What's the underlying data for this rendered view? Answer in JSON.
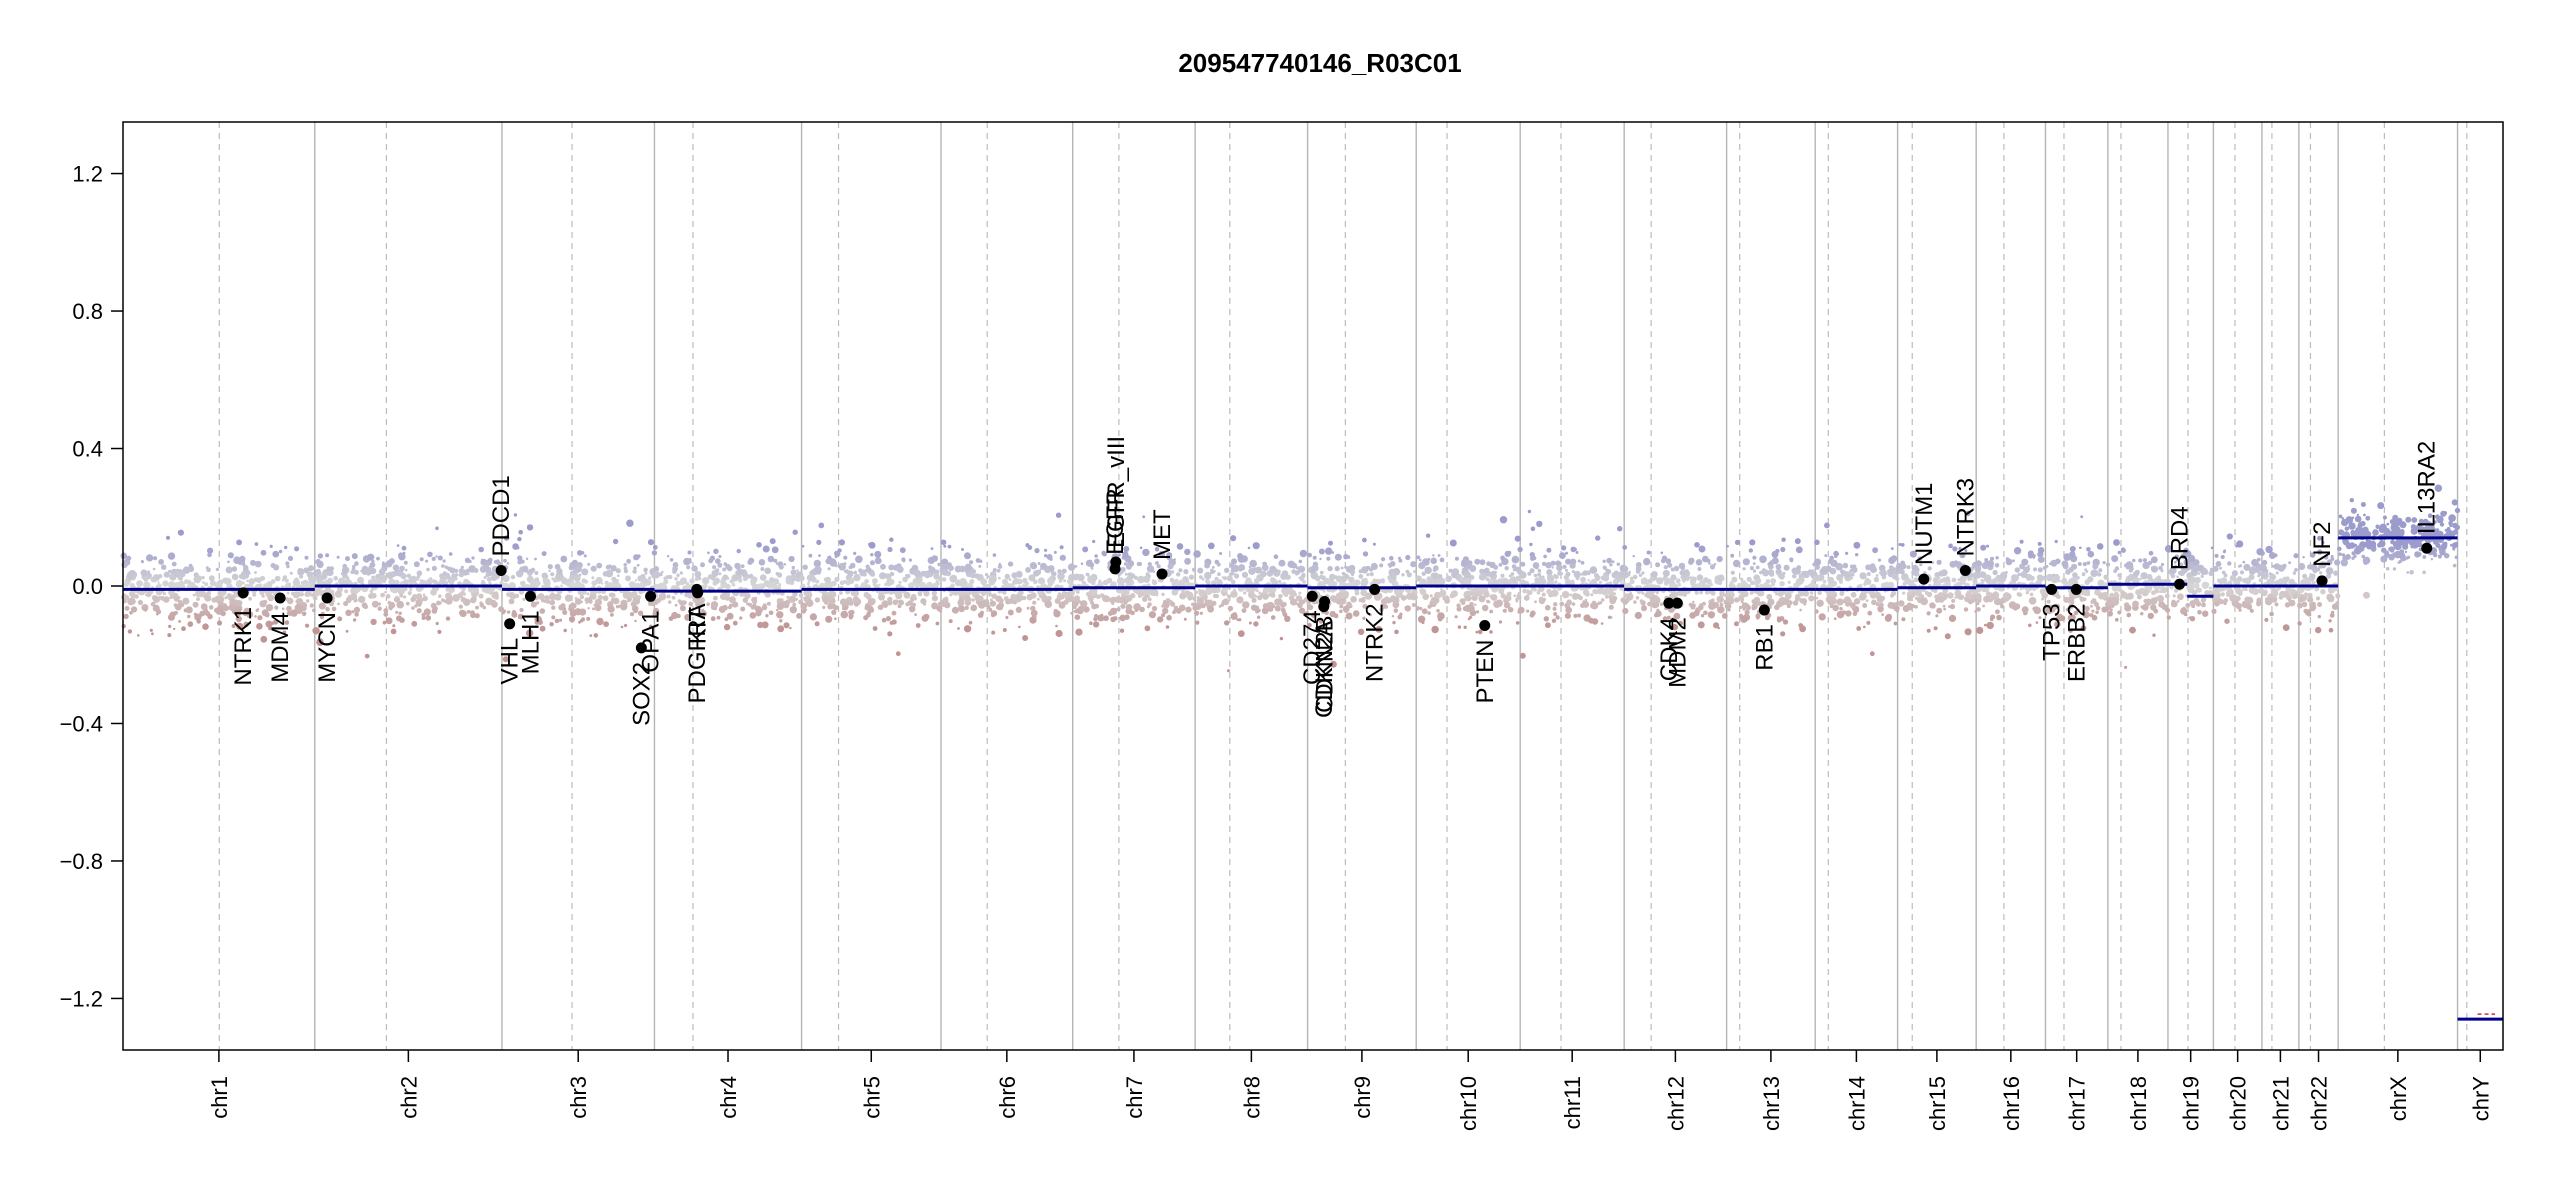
{
  "chart_data": {
    "type": "scatter",
    "title": "209547740146_R03C01",
    "ylim": [
      -1.35,
      1.35
    ],
    "yticks": [
      -1.2,
      -0.8,
      -0.4,
      0.0,
      0.4,
      0.8,
      1.2
    ],
    "ytick_labels": [
      "−1.2",
      "−0.8",
      "−0.4",
      "0.0",
      "0.4",
      "0.8",
      "1.2"
    ],
    "grid": "chromosome separators (solid) and centromeres (dashed)",
    "colors": {
      "gain": "#9b9bcc",
      "loss": "#c09595",
      "segment": "#00008b",
      "genes": "#000000",
      "separator": "#bbbbbb"
    },
    "chromosomes": [
      {
        "name": "chr1",
        "length": 249,
        "centromere": 125
      },
      {
        "name": "chr2",
        "length": 243,
        "centromere": 93
      },
      {
        "name": "chr3",
        "length": 198,
        "centromere": 91
      },
      {
        "name": "chr4",
        "length": 191,
        "centromere": 50
      },
      {
        "name": "chr5",
        "length": 181,
        "centromere": 48
      },
      {
        "name": "chr6",
        "length": 171,
        "centromere": 60
      },
      {
        "name": "chr7",
        "length": 159,
        "centromere": 60
      },
      {
        "name": "chr8",
        "length": 146,
        "centromere": 45
      },
      {
        "name": "chr9",
        "length": 141,
        "centromere": 49
      },
      {
        "name": "chr10",
        "length": 135,
        "centromere": 40
      },
      {
        "name": "chr11",
        "length": 135,
        "centromere": 53
      },
      {
        "name": "chr12",
        "length": 133,
        "centromere": 35
      },
      {
        "name": "chr13",
        "length": 115,
        "centromere": 17
      },
      {
        "name": "chr14",
        "length": 107,
        "centromere": 17
      },
      {
        "name": "chr15",
        "length": 102,
        "centromere": 19
      },
      {
        "name": "chr16",
        "length": 90,
        "centromere": 36
      },
      {
        "name": "chr17",
        "length": 81,
        "centromere": 24
      },
      {
        "name": "chr18",
        "length": 78,
        "centromere": 17
      },
      {
        "name": "chr19",
        "length": 59,
        "centromere": 26
      },
      {
        "name": "chr20",
        "length": 63,
        "centromere": 28
      },
      {
        "name": "chr21",
        "length": 48,
        "centromere": 13
      },
      {
        "name": "chr22",
        "length": 51,
        "centromere": 15
      },
      {
        "name": "chrX",
        "length": 155,
        "centromere": 60
      },
      {
        "name": "chrY",
        "length": 59,
        "centromere": 12
      }
    ],
    "chromosome_levels": [
      {
        "chr": "chr1",
        "value": -0.01,
        "noise": 0.12
      },
      {
        "chr": "chr2",
        "value": 0.0,
        "noise": 0.12
      },
      {
        "chr": "chr3",
        "value": -0.01,
        "noise": 0.12
      },
      {
        "chr": "chr4",
        "value": -0.01,
        "noise": 0.12
      },
      {
        "chr": "chr5",
        "value": -0.01,
        "noise": 0.12
      },
      {
        "chr": "chr6",
        "value": -0.01,
        "noise": 0.12
      },
      {
        "chr": "chr7",
        "value": -0.005,
        "noise": 0.12
      },
      {
        "chr": "chr8",
        "value": -0.005,
        "noise": 0.12
      },
      {
        "chr": "chr9",
        "value": -0.005,
        "noise": 0.12
      },
      {
        "chr": "chr10",
        "value": 0.0,
        "noise": 0.12
      },
      {
        "chr": "chr11",
        "value": 0.0,
        "noise": 0.12
      },
      {
        "chr": "chr12",
        "value": -0.01,
        "noise": 0.12
      },
      {
        "chr": "chr13",
        "value": -0.01,
        "noise": 0.12
      },
      {
        "chr": "chr14",
        "value": -0.01,
        "noise": 0.12
      },
      {
        "chr": "chr15",
        "value": -0.005,
        "noise": 0.12
      },
      {
        "chr": "chr16",
        "value": 0.0,
        "noise": 0.12
      },
      {
        "chr": "chr17",
        "value": -0.005,
        "noise": 0.12
      },
      {
        "chr": "chr18",
        "value": 0.005,
        "noise": 0.12
      },
      {
        "chr": "chr19",
        "value": 0.01,
        "noise": 0.12
      },
      {
        "chr": "chr20",
        "value": 0.0,
        "noise": 0.12
      },
      {
        "chr": "chr21",
        "value": 0.0,
        "noise": 0.12
      },
      {
        "chr": "chr22",
        "value": 0.0,
        "noise": 0.12
      },
      {
        "chr": "chrX",
        "value": 0.14,
        "noise": 0.09
      },
      {
        "chr": "chrY",
        "value": -1.26,
        "noise": 0.0
      }
    ],
    "segments": [
      {
        "chr": "chr1",
        "start": 0,
        "end": 249,
        "value": -0.01
      },
      {
        "chr": "chr2",
        "start": 0,
        "end": 243,
        "value": 0.0
      },
      {
        "chr": "chr3",
        "start": 0,
        "end": 198,
        "value": -0.01
      },
      {
        "chr": "chr4",
        "start": 0,
        "end": 191,
        "value": -0.015
      },
      {
        "chr": "chr5",
        "start": 0,
        "end": 181,
        "value": -0.01
      },
      {
        "chr": "chr6",
        "start": 0,
        "end": 171,
        "value": -0.01
      },
      {
        "chr": "chr7",
        "start": 0,
        "end": 159,
        "value": -0.005
      },
      {
        "chr": "chr8",
        "start": 0,
        "end": 146,
        "value": 0.0
      },
      {
        "chr": "chr9",
        "start": 0,
        "end": 141,
        "value": -0.005
      },
      {
        "chr": "chr10",
        "start": 0,
        "end": 135,
        "value": 0.0
      },
      {
        "chr": "chr11",
        "start": 0,
        "end": 135,
        "value": 0.0
      },
      {
        "chr": "chr12",
        "start": 0,
        "end": 133,
        "value": -0.01
      },
      {
        "chr": "chr13",
        "start": 0,
        "end": 115,
        "value": -0.01
      },
      {
        "chr": "chr14",
        "start": 0,
        "end": 107,
        "value": -0.01
      },
      {
        "chr": "chr15",
        "start": 0,
        "end": 102,
        "value": -0.005
      },
      {
        "chr": "chr16",
        "start": 0,
        "end": 90,
        "value": 0.0
      },
      {
        "chr": "chr17",
        "start": 0,
        "end": 81,
        "value": -0.005
      },
      {
        "chr": "chr18",
        "start": 0,
        "end": 78,
        "value": 0.005
      },
      {
        "chr": "chr19",
        "start": 0,
        "end": 25,
        "value": 0.005
      },
      {
        "chr": "chr19",
        "start": 25,
        "end": 59,
        "value": -0.03
      },
      {
        "chr": "chr20",
        "start": 0,
        "end": 63,
        "value": 0.0
      },
      {
        "chr": "chr21",
        "start": 0,
        "end": 48,
        "value": 0.0
      },
      {
        "chr": "chr22",
        "start": 0,
        "end": 51,
        "value": 0.0
      },
      {
        "chr": "chrX",
        "start": 0,
        "end": 155,
        "value": 0.14
      },
      {
        "chr": "chrY",
        "start": 0,
        "end": 59,
        "value": -1.26
      }
    ],
    "genes": [
      {
        "name": "NTRK1",
        "chr": "chr1",
        "pos": 156,
        "value": -0.02,
        "label_side": "below"
      },
      {
        "name": "MDM4",
        "chr": "chr1",
        "pos": 204,
        "value": -0.035,
        "label_side": "below"
      },
      {
        "name": "MYCN",
        "chr": "chr2",
        "pos": 16,
        "value": -0.035,
        "label_side": "below"
      },
      {
        "name": "PDCD1",
        "chr": "chr2",
        "pos": 242,
        "value": 0.045,
        "label_side": "above"
      },
      {
        "name": "VHL",
        "chr": "chr3",
        "pos": 10,
        "value": -0.11,
        "label_side": "below"
      },
      {
        "name": "MLH1",
        "chr": "chr3",
        "pos": 37,
        "value": -0.03,
        "label_side": "below"
      },
      {
        "name": "SOX2",
        "chr": "chr3",
        "pos": 181,
        "value": -0.18,
        "label_side": "below"
      },
      {
        "name": "OPA1",
        "chr": "chr3",
        "pos": 193,
        "value": -0.03,
        "label_side": "below"
      },
      {
        "name": "PDGFRA",
        "chr": "chr4",
        "pos": 55,
        "value": -0.01,
        "label_side": "below"
      },
      {
        "name": "KIT",
        "chr": "chr4",
        "pos": 56,
        "value": -0.02,
        "label_side": "below"
      },
      {
        "name": "EGFR",
        "chr": "chr7",
        "pos": 55,
        "value": 0.05,
        "label_side": "above"
      },
      {
        "name": "EGFR_vIII",
        "chr": "chr7",
        "pos": 56,
        "value": 0.07,
        "label_side": "above"
      },
      {
        "name": "MET",
        "chr": "chr7",
        "pos": 116,
        "value": 0.035,
        "label_side": "above"
      },
      {
        "name": "CD274",
        "chr": "chr9",
        "pos": 6,
        "value": -0.03,
        "label_side": "below"
      },
      {
        "name": "CDKN2A",
        "chr": "chr9",
        "pos": 21,
        "value": -0.06,
        "label_side": "below"
      },
      {
        "name": "CDKN2B",
        "chr": "chr9",
        "pos": 22,
        "value": -0.045,
        "label_side": "below"
      },
      {
        "name": "NTRK2",
        "chr": "chr9",
        "pos": 87,
        "value": -0.01,
        "label_side": "below"
      },
      {
        "name": "PTEN",
        "chr": "chr10",
        "pos": 89,
        "value": -0.115,
        "label_side": "below"
      },
      {
        "name": "CDK4",
        "chr": "chr12",
        "pos": 58,
        "value": -0.05,
        "label_side": "below"
      },
      {
        "name": "MDM2",
        "chr": "chr12",
        "pos": 69,
        "value": -0.05,
        "label_side": "below"
      },
      {
        "name": "RB1",
        "chr": "chr13",
        "pos": 49,
        "value": -0.07,
        "label_side": "below"
      },
      {
        "name": "NUTM1",
        "chr": "chr15",
        "pos": 34,
        "value": 0.02,
        "label_side": "above"
      },
      {
        "name": "NTRK3",
        "chr": "chr15",
        "pos": 88,
        "value": 0.045,
        "label_side": "above"
      },
      {
        "name": "TP53",
        "chr": "chr17",
        "pos": 8,
        "value": -0.01,
        "label_side": "below"
      },
      {
        "name": "ERBB2",
        "chr": "chr17",
        "pos": 40,
        "value": -0.01,
        "label_side": "below"
      },
      {
        "name": "BRD4",
        "chr": "chr19",
        "pos": 15,
        "value": 0.005,
        "label_side": "above"
      },
      {
        "name": "NF2",
        "chr": "chr22",
        "pos": 30,
        "value": 0.015,
        "label_side": "above"
      },
      {
        "name": "IL13RA2",
        "chr": "chrX",
        "pos": 115,
        "value": 0.11,
        "label_side": "above"
      }
    ]
  }
}
